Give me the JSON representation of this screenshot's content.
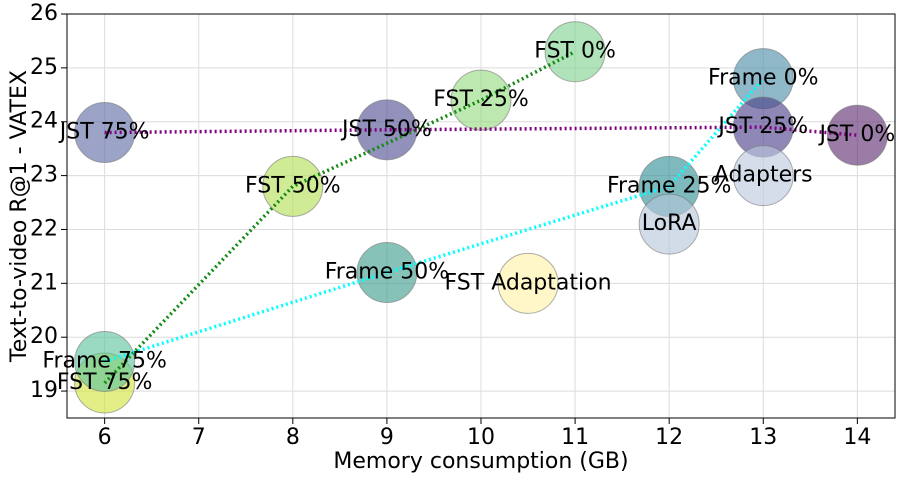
{
  "chart_data": {
    "type": "bubble",
    "x_label": "Memory consumption (GB)",
    "y_label": "Text-to-video R@1 - VATEX",
    "xlim": [
      5.6,
      14.4
    ],
    "xticks": [
      6,
      7,
      8,
      9,
      10,
      11,
      12,
      13,
      14
    ],
    "ylim": [
      18.5,
      26
    ],
    "yticks": [
      19,
      20,
      21,
      22,
      23,
      24,
      25,
      26
    ],
    "grid": true,
    "series": [
      {
        "line": true,
        "color": "#138a13",
        "x": [
          6,
          8,
          10,
          11
        ],
        "y": [
          19.15,
          22.8,
          24.4,
          25.3
        ],
        "labels": [
          "FST 75%",
          "FST 50%",
          "FST 25%",
          "FST 0%"
        ],
        "bubble_colors": [
          "#d2e43c",
          "#b2de54",
          "#94da80",
          "#7fd28e"
        ]
      },
      {
        "line": true,
        "color": "#00ffff",
        "x": [
          6,
          9,
          12,
          13
        ],
        "y": [
          19.55,
          21.2,
          22.8,
          24.8
        ],
        "labels": [
          "Frame 75%",
          "Frame 50%",
          "Frame 25%",
          "Frame 0%"
        ],
        "bubble_colors": [
          "#5cc49c",
          "#3e9c8e",
          "#2f8e96",
          "#4b8ca8"
        ]
      },
      {
        "line": true,
        "color": "#800080",
        "x": [
          6,
          9,
          13,
          14
        ],
        "y": [
          23.8,
          23.85,
          23.9,
          23.75
        ],
        "labels": [
          "JST 75%",
          "JST 50%",
          "JST 25%",
          "JST 0%"
        ],
        "bubble_colors": [
          "#5e6aa4",
          "#4e4e92",
          "#4a3e88",
          "#5c2c70"
        ]
      },
      {
        "line": false,
        "color": "#888888",
        "x": [
          12,
          10.5,
          13
        ],
        "y": [
          22.1,
          21.0,
          23.0
        ],
        "labels": [
          "LoRA",
          "FST Adaptation",
          "Adapters"
        ],
        "bubble_colors": [
          "#b4c6da",
          "#fff2a6",
          "#bcc8de"
        ]
      }
    ]
  }
}
